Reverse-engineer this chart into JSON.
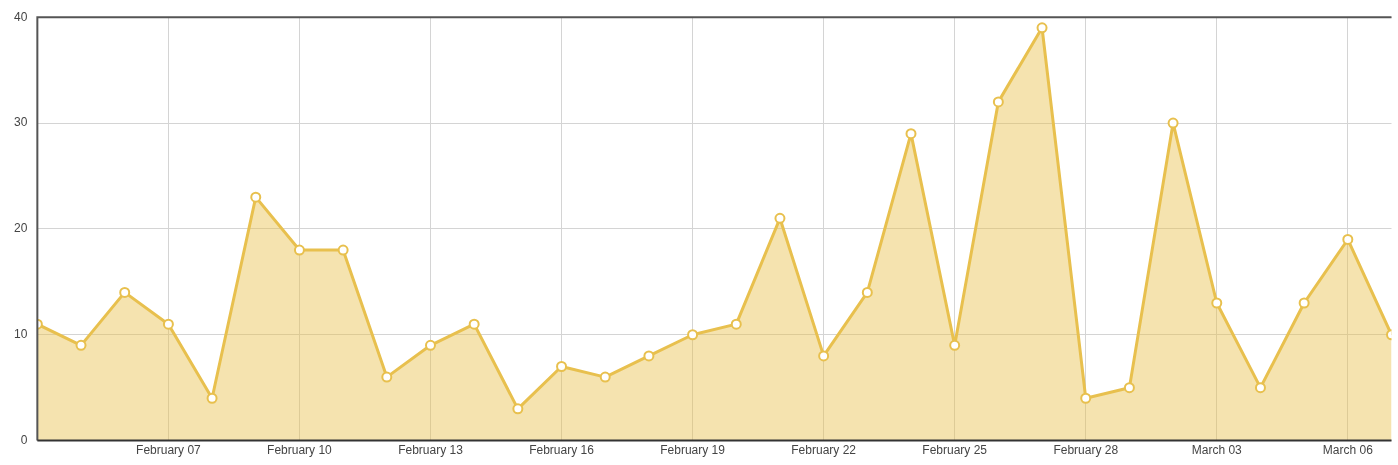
{
  "chart_data": {
    "type": "area",
    "x": [
      "--02-04",
      "--02-05",
      "--02-06",
      "--02-07",
      "--02-08",
      "--02-09",
      "--02-10",
      "--02-11",
      "--02-12",
      "--02-13",
      "--02-14",
      "--02-15",
      "--02-16",
      "--02-17",
      "--02-18",
      "--02-19",
      "--02-20",
      "--02-21",
      "--02-22",
      "--02-23",
      "--02-24",
      "--02-25",
      "--02-26",
      "--02-27",
      "--02-28",
      "--03-01",
      "--03-02",
      "--03-03",
      "--03-04",
      "--03-05",
      "--03-06",
      "--03-07"
    ],
    "series": [
      {
        "color": "#e8c04e",
        "values": [
          11,
          9,
          14,
          11,
          4,
          23,
          18,
          18,
          6,
          9,
          11,
          3,
          7,
          6,
          8,
          10,
          11,
          21,
          8,
          14,
          29,
          9,
          32,
          39,
          4,
          5,
          30,
          13,
          5,
          13,
          19,
          10
        ]
      }
    ],
    "xlim": [
      "--02-04",
      "--03-07"
    ],
    "xticks": [
      {
        "value": "--02-07",
        "label": "February 07"
      },
      {
        "value": "--02-10",
        "label": "February 10"
      },
      {
        "value": "--02-13",
        "label": "February 13"
      },
      {
        "value": "--02-16",
        "label": "February 16"
      },
      {
        "value": "--02-19",
        "label": "February 19"
      },
      {
        "value": "--02-22",
        "label": "February 22"
      },
      {
        "value": "--02-25",
        "label": "February 25"
      },
      {
        "value": "--02-28",
        "label": "February 28"
      },
      {
        "value": "--03-03",
        "label": "March 03"
      },
      {
        "value": "--03-06",
        "label": "March 06"
      }
    ],
    "ylim": [
      0,
      40
    ],
    "yticks": [
      0,
      10,
      20,
      30,
      40
    ],
    "grid": true,
    "legend": false,
    "marker": "circle",
    "line_style": "solid"
  }
}
